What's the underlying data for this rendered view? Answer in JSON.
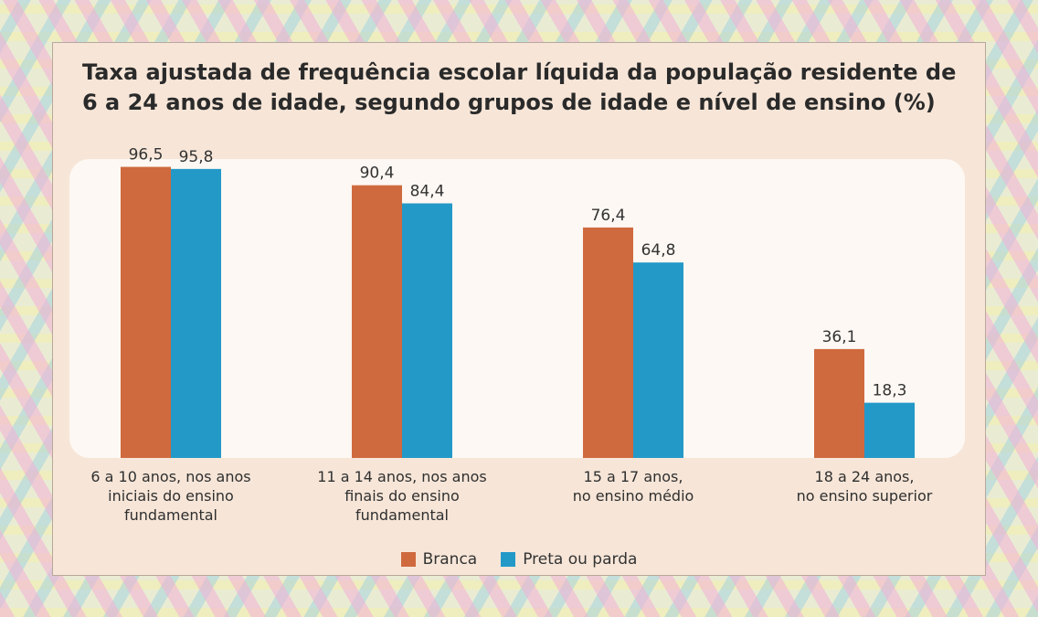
{
  "chart_data": {
    "type": "bar",
    "title": "Taxa ajustada de frequência escolar líquida da população residente de 6 a 24 anos de idade, segundo grupos de idade e nível de ensino (%)",
    "categories": [
      "6 a 10 anos, nos anos\niniciais do ensino\nfundamental",
      "11 a 14 anos, nos anos\nfinais do ensino\nfundamental",
      "15 a 17 anos,\nno ensino médio",
      "18 a 24 anos,\nno ensino superior"
    ],
    "series": [
      {
        "name": "Branca",
        "color": "#cf6a3f",
        "values": [
          96.5,
          90.4,
          76.4,
          36.1
        ],
        "labels": [
          "96,5",
          "90,4",
          "76,4",
          "36,1"
        ]
      },
      {
        "name": "Preta ou parda",
        "color": "#2399c8",
        "values": [
          95.8,
          84.4,
          64.8,
          18.3
        ],
        "labels": [
          "95,8",
          "84,4",
          "64,8",
          "18,3"
        ]
      }
    ],
    "ylim": [
      0,
      100
    ],
    "grid": false,
    "legend_position": "bottom-center"
  }
}
